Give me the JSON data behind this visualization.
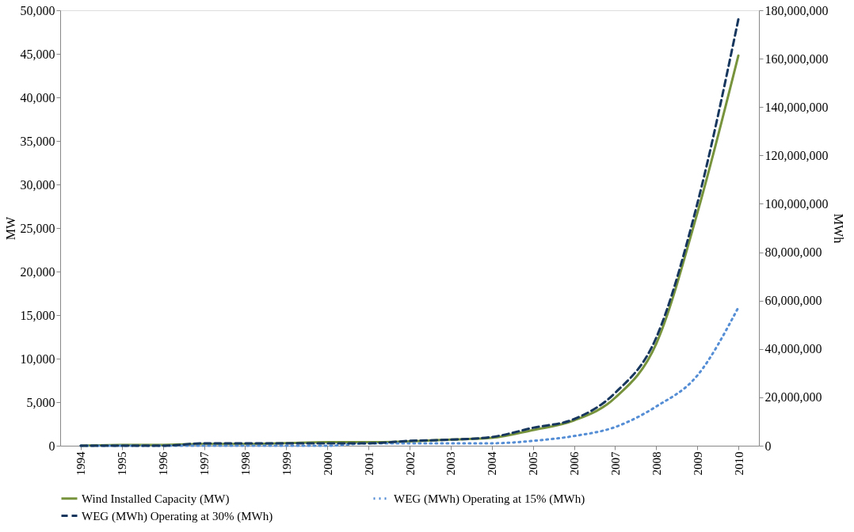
{
  "chart_data": {
    "type": "line",
    "ylabel": "MW",
    "y2label": "MWh",
    "categories": [
      "1994",
      "1995",
      "1996",
      "1997",
      "1998",
      "1999",
      "2000",
      "2001",
      "2002",
      "2003",
      "2004",
      "2005",
      "2006",
      "2007",
      "2008",
      "2009",
      "2010"
    ],
    "ylim": [
      0,
      50000
    ],
    "yticks": [
      0,
      {
        "value": 5000,
        "label": "5,000"
      },
      {
        "value": 10000,
        "label": "10,000"
      },
      {
        "value": 15000,
        "label": "15,000"
      },
      {
        "value": 20000,
        "label": "20,000"
      },
      {
        "value": 25000,
        "label": "25,000"
      },
      {
        "value": 30000,
        "label": "30,000"
      },
      {
        "value": 35000,
        "label": "35,000"
      },
      {
        "value": 40000,
        "label": "40,000"
      },
      {
        "value": 45000,
        "label": "45,000"
      },
      {
        "value": 50000,
        "label": "50,000"
      }
    ],
    "y2lim": [
      0,
      180000000
    ],
    "y2ticks": [
      0,
      {
        "value": 20000000,
        "label": "20,000,000"
      },
      {
        "value": 40000000,
        "label": "40,000,000"
      },
      {
        "value": 60000000,
        "label": "60,000,000"
      },
      {
        "value": 80000000,
        "label": "80,000,000"
      },
      {
        "value": 100000000,
        "label": "100,000,000"
      },
      {
        "value": 120000000,
        "label": "120,000,000"
      },
      {
        "value": 140000000,
        "label": "140,000,000"
      },
      {
        "value": 160000000,
        "label": "160,000,000"
      },
      {
        "value": 180000000,
        "label": "180,000,000"
      }
    ],
    "grid": false,
    "legend": "bottom",
    "marker": "none",
    "series": [
      {
        "name": "Wind Installed Capacity (MW)",
        "color": "#77933c",
        "line_style": "solid",
        "values": [
          0,
          100,
          100,
          200,
          200,
          300,
          400,
          400,
          500,
          700,
          900,
          1800,
          2900,
          5500,
          11700,
          26700,
          44800
        ]
      },
      {
        "name": "WEG (MWh) Operating at 15% (MWh)",
        "color": "#558ed5",
        "line_style": "dotted",
        "axis": "y2",
        "values": [
          0,
          0,
          0,
          0,
          0,
          0,
          0,
          1000000,
          1000000,
          1000000,
          1000000,
          2000000,
          4000000,
          7700000,
          16200000,
          29000000,
          57200000
        ]
      },
      {
        "name": "WEG (MWh) Operating at 30% (MWh)",
        "color": "#17375e",
        "line_style": "dashed",
        "axis": "y2",
        "values": [
          0,
          0,
          0,
          1000000,
          1000000,
          1000000,
          1000000,
          1000000,
          2000000,
          2500000,
          3600000,
          7400000,
          11000000,
          21800000,
          44600000,
          100000000,
          176300000
        ]
      }
    ]
  }
}
